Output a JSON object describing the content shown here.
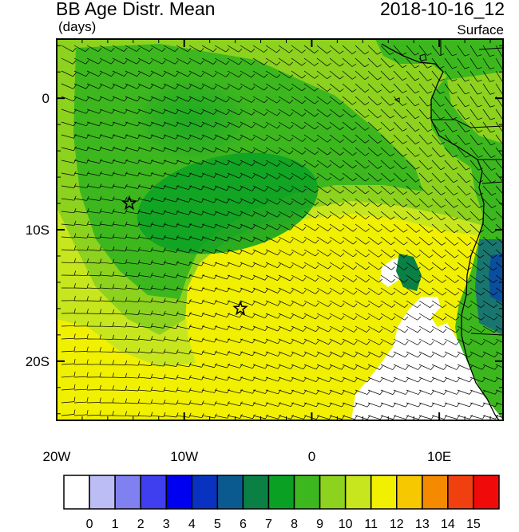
{
  "header": {
    "title": "BB Age Distr. Mean",
    "datetime": "2018-10-16_12",
    "units": "(days)",
    "level": "Surface"
  },
  "axes": {
    "lon_min": -20,
    "lon_max": 15,
    "lat_min": -24.5,
    "lat_max": 4.5,
    "x_ticks": [
      {
        "value": -20,
        "label": "20W"
      },
      {
        "value": -10,
        "label": "10W"
      },
      {
        "value": 0,
        "label": "0"
      },
      {
        "value": 10,
        "label": "10E"
      }
    ],
    "y_ticks": [
      {
        "value": 0,
        "label": "0"
      },
      {
        "value": -10,
        "label": "10S"
      },
      {
        "value": -20,
        "label": "20S"
      }
    ]
  },
  "markers": [
    {
      "name": "star-marker-north",
      "lon": -14.3,
      "lat": -8.0
    },
    {
      "name": "star-marker-south",
      "lon": -5.6,
      "lat": -16.0
    }
  ],
  "colorbar": {
    "labels": [
      "0",
      "1",
      "2",
      "3",
      "4",
      "5",
      "6",
      "7",
      "8",
      "9",
      "10",
      "11",
      "12",
      "13",
      "14",
      "15"
    ],
    "colors": [
      "#ffffff",
      "#bdbdf5",
      "#8080f0",
      "#3f3ff0",
      "#0000f0",
      "#0a32c0",
      "#0a5a90",
      "#0a8045",
      "#0aa024",
      "#3cb81e",
      "#8cd21e",
      "#c8e61e",
      "#f0f000",
      "#f5c800",
      "#f58a00",
      "#f04010",
      "#f00a0a"
    ]
  }
}
